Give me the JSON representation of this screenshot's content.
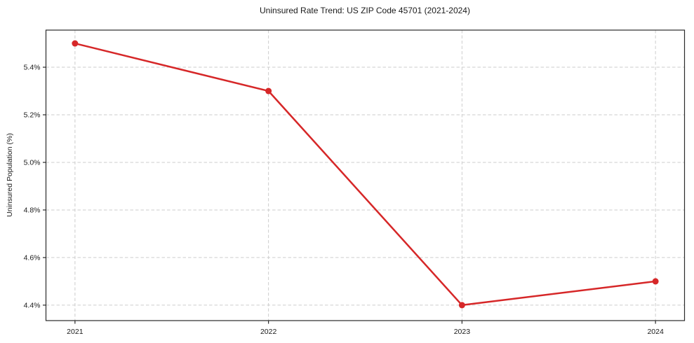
{
  "chart_data": {
    "type": "line",
    "title": "Uninsured Rate Trend: US ZIP Code 45701 (2021-2024)",
    "xlabel": "",
    "ylabel": "Uninsured Population (%)",
    "x": [
      2021,
      2022,
      2023,
      2024
    ],
    "values": [
      5.5,
      5.3,
      4.4,
      4.5
    ],
    "x_tick_labels": [
      "2021",
      "2022",
      "2023",
      "2024"
    ],
    "y_ticks": [
      4.4,
      4.6,
      4.8,
      5.0,
      5.2,
      5.4
    ],
    "y_tick_labels": [
      "4.4%",
      "4.6%",
      "4.8%",
      "5.0%",
      "5.2%",
      "5.4%"
    ],
    "xlim": [
      2020.85,
      2024.15
    ],
    "ylim": [
      4.335,
      5.556
    ],
    "grid": true,
    "grid_style": "dashed",
    "legend_position": "none",
    "line_color": "#d62728",
    "marker": "circle",
    "grid_color": "#cdcdcd",
    "spine_color": "#2a2a2a",
    "text_color": "#1a1a1a",
    "background_color": "#ffffff"
  }
}
